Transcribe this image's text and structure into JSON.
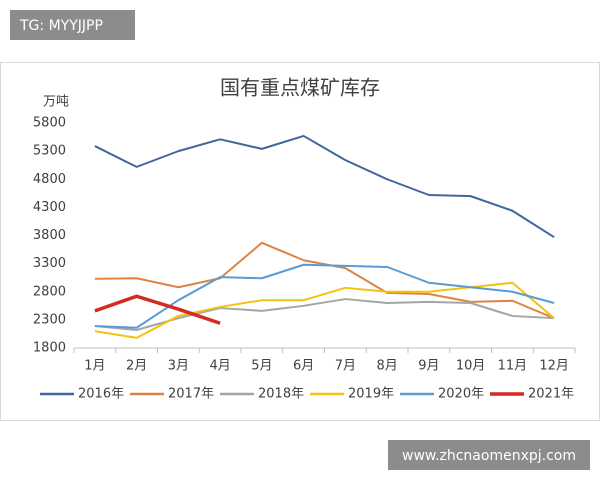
{
  "watermarks": [
    "TG: MYYJJPP",
    "www.zhcnaomenxpj.com"
  ],
  "chart_data": {
    "type": "line",
    "title": "国有重点煤矿库存",
    "y_label": "万吨",
    "categories": [
      "1月",
      "2月",
      "3月",
      "4月",
      "5月",
      "6月",
      "7月",
      "8月",
      "9月",
      "10月",
      "11月",
      "12月"
    ],
    "ylim": [
      1800,
      5800
    ],
    "yticks": [
      1800,
      2300,
      2800,
      3300,
      3800,
      4300,
      4800,
      5300,
      5800
    ],
    "grid": false,
    "legend": "bottom",
    "series": [
      {
        "name": "2016年",
        "color": "#41669d",
        "values": [
          5390,
          5020,
          5300,
          5510,
          5340,
          5570,
          5140,
          4800,
          4520,
          4500,
          4240,
          3770
        ]
      },
      {
        "name": "2017年",
        "color": "#dd8344",
        "values": [
          3030,
          3040,
          2880,
          3040,
          3670,
          3360,
          3220,
          2780,
          2760,
          2620,
          2640,
          2330
        ]
      },
      {
        "name": "2018年",
        "color": "#a5a5a5",
        "values": [
          2190,
          2120,
          2330,
          2510,
          2460,
          2550,
          2670,
          2600,
          2620,
          2600,
          2370,
          2330
        ]
      },
      {
        "name": "2019年",
        "color": "#f2c311",
        "values": [
          2100,
          1980,
          2370,
          2530,
          2650,
          2650,
          2870,
          2800,
          2800,
          2880,
          2960,
          2330
        ]
      },
      {
        "name": "2020年",
        "color": "#5b9bd5",
        "values": [
          2190,
          2160,
          2650,
          3060,
          3040,
          3280,
          3260,
          3240,
          2960,
          2880,
          2800,
          2600
        ]
      },
      {
        "name": "2021年",
        "color": "#d42a20",
        "width": 3.5,
        "values": [
          2460,
          2720,
          2490,
          2240,
          null,
          null,
          null,
          null,
          null,
          null,
          null,
          null
        ]
      }
    ]
  }
}
